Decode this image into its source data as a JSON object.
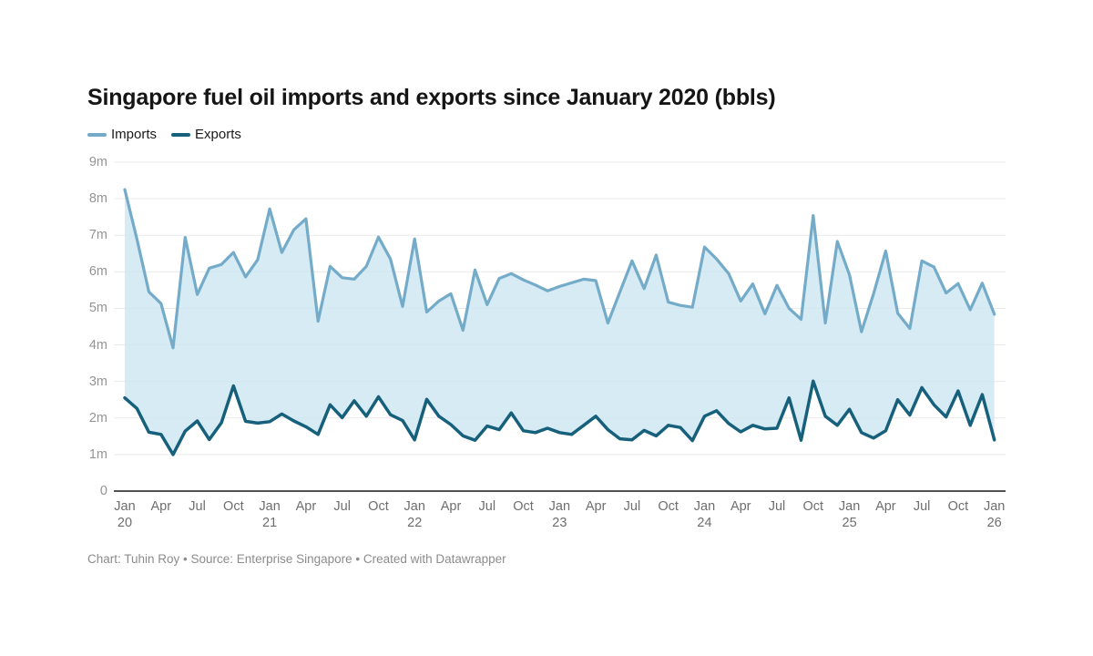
{
  "title": "Singapore fuel oil imports and exports since January 2020 (bbls)",
  "legend": [
    {
      "label": "Imports",
      "color": "#74abc9"
    },
    {
      "label": "Exports",
      "color": "#17607c"
    }
  ],
  "footer": "Chart: Tuhin Roy • Source: Enterprise Singapore • Created with Datawrapper",
  "chart_data": {
    "type": "line",
    "title": "Singapore fuel oil imports and exports since January 2020 (bbls)",
    "xlabel": "",
    "ylabel": "",
    "unit": "bbls (millions)",
    "ylim": [
      0,
      9
    ],
    "grid": true,
    "legend_position": "top-left",
    "band_fill": "#cde7f1",
    "grid_color": "#e9e9e9",
    "axis_color": "#1a1a1a",
    "y_ticks": [
      "0",
      "1m",
      "2m",
      "3m",
      "4m",
      "5m",
      "6m",
      "7m",
      "8m",
      "9m"
    ],
    "x_tick_months": [
      "Jan",
      "Apr",
      "Jul",
      "Oct"
    ],
    "years": [
      "20",
      "21",
      "22",
      "23",
      "24",
      "25",
      "26"
    ],
    "x": [
      "2020-01",
      "2020-02",
      "2020-03",
      "2020-04",
      "2020-05",
      "2020-06",
      "2020-07",
      "2020-08",
      "2020-09",
      "2020-10",
      "2020-11",
      "2020-12",
      "2021-01",
      "2021-02",
      "2021-03",
      "2021-04",
      "2021-05",
      "2021-06",
      "2021-07",
      "2021-08",
      "2021-09",
      "2021-10",
      "2021-11",
      "2021-12",
      "2022-01",
      "2022-02",
      "2022-03",
      "2022-04",
      "2022-05",
      "2022-06",
      "2022-07",
      "2022-08",
      "2022-09",
      "2022-10",
      "2022-11",
      "2022-12",
      "2023-01",
      "2023-02",
      "2023-03",
      "2023-04",
      "2023-05",
      "2023-06",
      "2023-07",
      "2023-08",
      "2023-09",
      "2023-10",
      "2023-11",
      "2023-12",
      "2024-01",
      "2024-02",
      "2024-03",
      "2024-04",
      "2024-05",
      "2024-06",
      "2024-07",
      "2024-08",
      "2024-09",
      "2024-10",
      "2024-11",
      "2024-12",
      "2025-01",
      "2025-02",
      "2025-03",
      "2025-04",
      "2025-05",
      "2025-06",
      "2025-07",
      "2025-08",
      "2025-09",
      "2025-10",
      "2025-11",
      "2025-12",
      "2026-01"
    ],
    "series": [
      {
        "name": "Imports",
        "color": "#74abc9",
        "values": [
          8.25,
          6.9,
          5.45,
          5.13,
          3.92,
          6.94,
          5.38,
          6.1,
          6.2,
          6.53,
          5.86,
          6.33,
          7.72,
          6.53,
          7.15,
          7.45,
          4.65,
          6.15,
          5.84,
          5.8,
          6.15,
          6.95,
          6.35,
          5.05,
          6.9,
          4.9,
          5.2,
          5.4,
          4.4,
          6.05,
          5.1,
          5.82,
          5.95,
          5.78,
          5.64,
          5.48,
          5.6,
          5.7,
          5.8,
          5.76,
          4.6,
          5.45,
          6.3,
          5.54,
          6.46,
          5.17,
          5.08,
          5.03,
          6.68,
          6.35,
          5.95,
          5.2,
          5.67,
          4.85,
          5.63,
          5.0,
          4.7,
          7.54,
          4.6,
          6.83,
          5.92,
          4.36,
          5.4,
          6.57,
          4.87,
          4.45,
          6.3,
          6.13,
          5.42,
          5.68,
          4.96,
          5.69,
          4.84
        ]
      },
      {
        "name": "Exports",
        "color": "#17607c",
        "values": [
          2.55,
          2.26,
          1.61,
          1.55,
          1.0,
          1.64,
          1.92,
          1.41,
          1.87,
          2.88,
          1.91,
          1.86,
          1.9,
          2.11,
          1.92,
          1.76,
          1.55,
          2.36,
          2.01,
          2.47,
          2.05,
          2.58,
          2.09,
          1.93,
          1.4,
          2.51,
          2.05,
          1.82,
          1.51,
          1.39,
          1.78,
          1.68,
          2.14,
          1.65,
          1.6,
          1.72,
          1.6,
          1.55,
          1.8,
          2.05,
          1.68,
          1.43,
          1.4,
          1.66,
          1.51,
          1.8,
          1.74,
          1.38,
          2.05,
          2.2,
          1.85,
          1.62,
          1.8,
          1.7,
          1.72,
          2.55,
          1.39,
          3.01,
          2.05,
          1.8,
          2.24,
          1.6,
          1.45,
          1.65,
          2.5,
          2.08,
          2.83,
          2.36,
          2.03,
          2.74,
          1.8,
          2.64,
          1.4
        ]
      }
    ]
  }
}
